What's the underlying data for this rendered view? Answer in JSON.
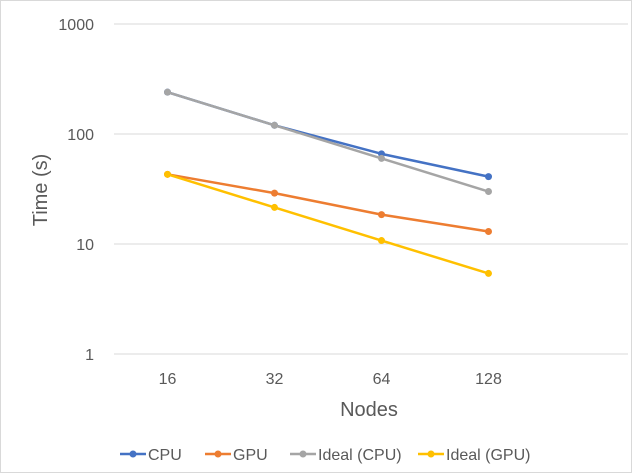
{
  "chart_data": {
    "type": "line",
    "title": "",
    "xlabel": "Nodes",
    "ylabel": "Time (s)",
    "yscale": "log",
    "ylim": [
      1,
      1000
    ],
    "yticks": [
      "1",
      "10",
      "100",
      "1000"
    ],
    "categories": [
      "16",
      "32",
      "64",
      "128"
    ],
    "grid": "horizontal",
    "legend_position": "bottom",
    "series": [
      {
        "name": "CPU",
        "color": "#4472c4",
        "values": [
          240,
          120,
          66,
          41
        ]
      },
      {
        "name": "GPU",
        "color": "#ed7d31",
        "values": [
          43,
          29,
          18.5,
          13
        ]
      },
      {
        "name": "Ideal (CPU)",
        "color": "#a5a5a5",
        "values": [
          240,
          120,
          60,
          30
        ]
      },
      {
        "name": "Ideal (GPU)",
        "color": "#ffc000",
        "values": [
          43,
          21.5,
          10.75,
          5.4
        ]
      }
    ]
  }
}
